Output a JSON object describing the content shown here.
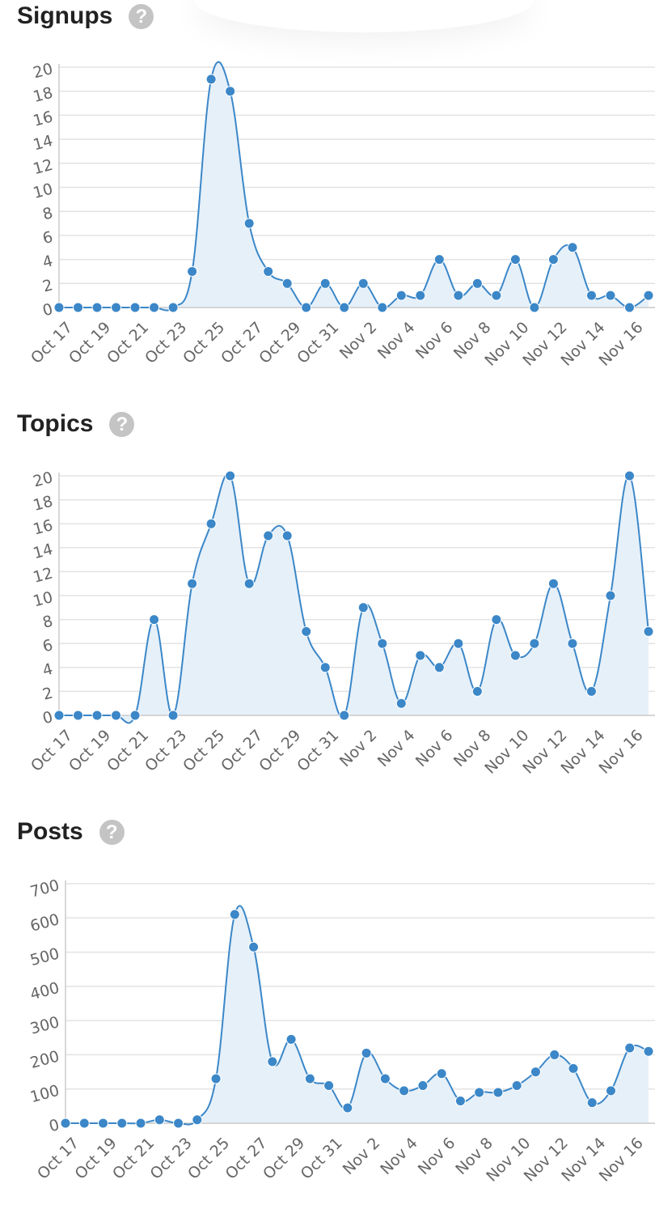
{
  "sections": [
    {
      "id": "signups",
      "title": "Signups",
      "help_icon": "question-circle-icon",
      "help_glyph": "?"
    },
    {
      "id": "topics",
      "title": "Topics",
      "help_icon": "question-circle-icon",
      "help_glyph": "?"
    },
    {
      "id": "posts",
      "title": "Posts",
      "help_icon": "question-circle-icon",
      "help_glyph": "?"
    }
  ],
  "colors": {
    "line": "#3b87c8",
    "fill": "#e6f0f9",
    "grid": "#e3e3e3",
    "tick_text": "#666666",
    "title_text": "#222222",
    "help_icon_bg": "#c4c4c4"
  },
  "chart_data": [
    {
      "type": "area",
      "title": "",
      "xlabel": "",
      "ylabel": "",
      "categories": [
        "Oct 17",
        "Oct 18",
        "Oct 19",
        "Oct 20",
        "Oct 21",
        "Oct 22",
        "Oct 23",
        "Oct 24",
        "Oct 25",
        "Oct 26",
        "Oct 27",
        "Oct 28",
        "Oct 29",
        "Oct 30",
        "Oct 31",
        "Nov 1",
        "Nov 2",
        "Nov 3",
        "Nov 4",
        "Nov 5",
        "Nov 6",
        "Nov 7",
        "Nov 8",
        "Nov 9",
        "Nov 10",
        "Nov 11",
        "Nov 12",
        "Nov 13",
        "Nov 14",
        "Nov 15",
        "Nov 16",
        "Nov 17"
      ],
      "x_tick_labels": [
        "Oct 17",
        "Oct 19",
        "Oct 21",
        "Oct 23",
        "Oct 25",
        "Oct 27",
        "Oct 29",
        "Oct 31",
        "Nov 2",
        "Nov 4",
        "Nov 6",
        "Nov 8",
        "Nov 10",
        "Nov 12",
        "Nov 14",
        "Nov 16"
      ],
      "series": [
        {
          "values": [
            0,
            0,
            0,
            0,
            0,
            0,
            0,
            3,
            19,
            18,
            7,
            3,
            2,
            0,
            2,
            0,
            2,
            0,
            1,
            1,
            4,
            1,
            2,
            1,
            4,
            0,
            4,
            5,
            1,
            1,
            0,
            1
          ]
        }
      ],
      "ylim": [
        0,
        20
      ],
      "yticks": [
        0,
        2,
        4,
        6,
        8,
        10,
        12,
        14,
        16,
        18,
        20
      ],
      "grid": true,
      "legend": "none"
    },
    {
      "type": "area",
      "title": "",
      "xlabel": "",
      "ylabel": "",
      "categories": [
        "Oct 17",
        "Oct 18",
        "Oct 19",
        "Oct 20",
        "Oct 21",
        "Oct 22",
        "Oct 23",
        "Oct 24",
        "Oct 25",
        "Oct 26",
        "Oct 27",
        "Oct 28",
        "Oct 29",
        "Oct 30",
        "Oct 31",
        "Nov 1",
        "Nov 2",
        "Nov 3",
        "Nov 4",
        "Nov 5",
        "Nov 6",
        "Nov 7",
        "Nov 8",
        "Nov 9",
        "Nov 10",
        "Nov 11",
        "Nov 12",
        "Nov 13",
        "Nov 14",
        "Nov 15",
        "Nov 16",
        "Nov 17"
      ],
      "x_tick_labels": [
        "Oct 17",
        "Oct 19",
        "Oct 21",
        "Oct 23",
        "Oct 25",
        "Oct 27",
        "Oct 29",
        "Oct 31",
        "Nov 2",
        "Nov 4",
        "Nov 6",
        "Nov 8",
        "Nov 10",
        "Nov 12",
        "Nov 14",
        "Nov 16"
      ],
      "series": [
        {
          "values": [
            0,
            0,
            0,
            0,
            0,
            8,
            0,
            11,
            16,
            20,
            11,
            15,
            15,
            7,
            4,
            0,
            9,
            6,
            1,
            5,
            4,
            6,
            2,
            8,
            5,
            6,
            11,
            6,
            2,
            10,
            20,
            7
          ]
        }
      ],
      "ylim": [
        0,
        20
      ],
      "yticks": [
        0,
        2,
        4,
        6,
        8,
        10,
        12,
        14,
        16,
        18,
        20
      ],
      "grid": true,
      "legend": "none"
    },
    {
      "type": "area",
      "title": "",
      "xlabel": "",
      "ylabel": "",
      "categories": [
        "Oct 17",
        "Oct 18",
        "Oct 19",
        "Oct 20",
        "Oct 21",
        "Oct 22",
        "Oct 23",
        "Oct 24",
        "Oct 25",
        "Oct 26",
        "Oct 27",
        "Oct 28",
        "Oct 29",
        "Oct 30",
        "Oct 31",
        "Nov 1",
        "Nov 2",
        "Nov 3",
        "Nov 4",
        "Nov 5",
        "Nov 6",
        "Nov 7",
        "Nov 8",
        "Nov 9",
        "Nov 10",
        "Nov 11",
        "Nov 12",
        "Nov 13",
        "Nov 14",
        "Nov 15",
        "Nov 16",
        "Nov 17"
      ],
      "x_tick_labels": [
        "Oct 17",
        "Oct 19",
        "Oct 21",
        "Oct 23",
        "Oct 25",
        "Oct 27",
        "Oct 29",
        "Oct 31",
        "Nov 2",
        "Nov 4",
        "Nov 6",
        "Nov 8",
        "Nov 10",
        "Nov 12",
        "Nov 14",
        "Nov 16"
      ],
      "series": [
        {
          "values": [
            0,
            0,
            0,
            0,
            0,
            10,
            0,
            10,
            130,
            610,
            515,
            180,
            245,
            130,
            110,
            45,
            205,
            130,
            95,
            110,
            145,
            65,
            90,
            90,
            110,
            150,
            200,
            160,
            60,
            95,
            220,
            210
          ]
        }
      ],
      "ylim": [
        0,
        700
      ],
      "yticks": [
        0,
        100,
        200,
        300,
        400,
        500,
        600,
        700
      ],
      "grid": true,
      "legend": "none"
    }
  ]
}
